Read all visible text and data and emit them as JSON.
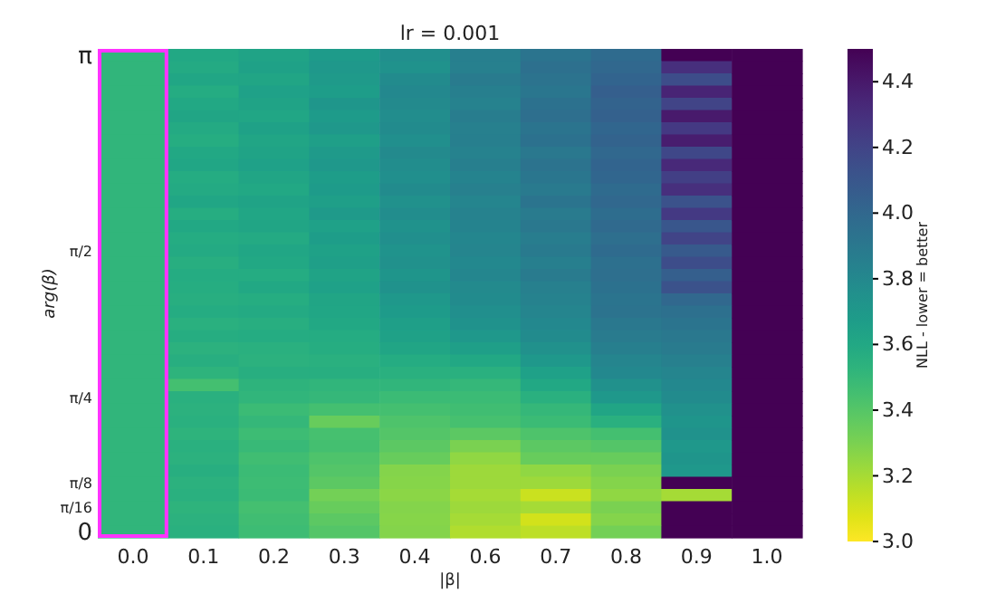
{
  "chart_data": {
    "type": "heatmap",
    "title": "lr = 0.001",
    "xlabel": "|β|",
    "ylabel": "arg(β)",
    "clabel": "NLL - lower = better",
    "categories": [
      "0.0",
      "0.1",
      "0.2",
      "0.3",
      "0.4",
      "0.6",
      "0.7",
      "0.8",
      "0.9",
      "1.0"
    ],
    "y_categories": [
      "π",
      null,
      null,
      null,
      null,
      null,
      null,
      null,
      null,
      null,
      null,
      null,
      null,
      null,
      null,
      null,
      "π/2",
      null,
      null,
      null,
      null,
      null,
      null,
      null,
      null,
      null,
      null,
      null,
      "π/4",
      null,
      null,
      null,
      null,
      null,
      null,
      "π/8",
      null,
      "π/16",
      null,
      "0"
    ],
    "clim": [
      3.0,
      4.5
    ],
    "cticks": [
      {
        "value": 3.0,
        "label": "3.0"
      },
      {
        "value": 3.2,
        "label": "3.2"
      },
      {
        "value": 3.4,
        "label": "3.4"
      },
      {
        "value": 3.6,
        "label": "3.6"
      },
      {
        "value": 3.8,
        "label": "3.8"
      },
      {
        "value": 4.0,
        "label": "4.0"
      },
      {
        "value": 4.2,
        "label": "4.2"
      },
      {
        "value": 4.4,
        "label": "4.4"
      }
    ],
    "cells": [
      [
        3.52,
        3.6,
        3.63,
        3.68,
        3.76,
        3.86,
        3.92,
        3.98,
        4.5,
        4.5
      ],
      [
        3.52,
        3.59,
        3.64,
        3.7,
        3.74,
        3.85,
        3.95,
        4.0,
        4.3,
        4.5
      ],
      [
        3.52,
        3.61,
        3.62,
        3.69,
        3.78,
        3.88,
        3.93,
        4.02,
        4.15,
        4.5
      ],
      [
        3.52,
        3.58,
        3.65,
        3.67,
        3.8,
        3.86,
        3.91,
        4.05,
        4.35,
        4.5
      ],
      [
        3.52,
        3.6,
        3.63,
        3.71,
        3.79,
        3.84,
        3.94,
        4.03,
        4.2,
        4.5
      ],
      [
        3.52,
        3.62,
        3.61,
        3.68,
        3.77,
        3.87,
        3.96,
        4.04,
        4.4,
        4.5
      ],
      [
        3.52,
        3.59,
        3.64,
        3.7,
        3.78,
        3.85,
        3.92,
        4.01,
        4.25,
        4.5
      ],
      [
        3.52,
        3.57,
        3.62,
        3.66,
        3.76,
        3.86,
        3.94,
        4.03,
        4.38,
        4.5
      ],
      [
        3.52,
        3.6,
        3.63,
        3.69,
        3.79,
        3.84,
        3.9,
        4.0,
        4.18,
        4.5
      ],
      [
        3.52,
        3.61,
        3.65,
        3.7,
        3.77,
        3.86,
        3.93,
        4.02,
        4.33,
        4.5
      ],
      [
        3.52,
        3.58,
        3.62,
        3.67,
        3.76,
        3.83,
        3.91,
        4.01,
        4.22,
        4.5
      ],
      [
        3.52,
        3.59,
        3.6,
        3.68,
        3.78,
        3.85,
        3.89,
        3.98,
        4.3,
        4.5
      ],
      [
        3.52,
        3.61,
        3.63,
        3.66,
        3.75,
        3.82,
        3.92,
        4.0,
        4.12,
        4.5
      ],
      [
        3.52,
        3.57,
        3.61,
        3.69,
        3.77,
        3.84,
        3.88,
        3.97,
        4.25,
        4.5
      ],
      [
        3.52,
        3.6,
        3.62,
        3.65,
        3.74,
        3.83,
        3.9,
        3.99,
        4.1,
        4.5
      ],
      [
        3.52,
        3.58,
        3.59,
        3.67,
        3.76,
        3.81,
        3.87,
        3.96,
        4.2,
        4.5
      ],
      [
        3.52,
        3.59,
        3.61,
        3.64,
        3.73,
        3.82,
        3.89,
        3.98,
        4.08,
        4.5
      ],
      [
        3.52,
        3.56,
        3.6,
        3.66,
        3.75,
        3.8,
        3.86,
        3.95,
        4.15,
        4.5
      ],
      [
        3.52,
        3.58,
        3.58,
        3.63,
        3.72,
        3.81,
        3.88,
        3.96,
        4.05,
        4.5
      ],
      [
        3.52,
        3.57,
        3.6,
        3.65,
        3.74,
        3.79,
        3.85,
        3.94,
        4.12,
        4.5
      ],
      [
        3.52,
        3.56,
        3.57,
        3.62,
        3.7,
        3.78,
        3.84,
        3.92,
        4.0,
        4.5
      ],
      [
        3.52,
        3.58,
        3.59,
        3.61,
        3.68,
        3.76,
        3.82,
        3.93,
        3.95,
        4.5
      ],
      [
        3.52,
        3.55,
        3.56,
        3.6,
        3.66,
        3.74,
        3.8,
        3.9,
        3.92,
        4.5
      ],
      [
        3.52,
        3.57,
        3.58,
        3.58,
        3.64,
        3.7,
        3.78,
        3.88,
        3.9,
        4.5
      ],
      [
        3.52,
        3.54,
        3.55,
        3.57,
        3.62,
        3.66,
        3.75,
        3.86,
        3.88,
        4.5
      ],
      [
        3.52,
        3.56,
        3.54,
        3.55,
        3.58,
        3.6,
        3.7,
        3.82,
        3.85,
        4.5
      ],
      [
        3.52,
        3.53,
        3.56,
        3.56,
        3.55,
        3.55,
        3.65,
        3.8,
        3.82,
        4.5
      ],
      [
        3.52,
        3.45,
        3.53,
        3.52,
        3.52,
        3.5,
        3.6,
        3.75,
        3.8,
        4.5
      ],
      [
        3.52,
        3.55,
        3.52,
        3.5,
        3.48,
        3.48,
        3.55,
        3.7,
        3.78,
        4.5
      ],
      [
        3.52,
        3.54,
        3.48,
        3.45,
        3.45,
        3.46,
        3.5,
        3.62,
        3.75,
        4.5
      ],
      [
        3.52,
        3.55,
        3.5,
        3.35,
        3.42,
        3.44,
        3.48,
        3.55,
        3.72,
        4.5
      ],
      [
        3.52,
        3.53,
        3.47,
        3.44,
        3.4,
        3.38,
        3.42,
        3.45,
        3.74,
        4.5
      ],
      [
        3.52,
        3.55,
        3.49,
        3.45,
        3.38,
        3.3,
        3.38,
        3.4,
        3.7,
        4.5
      ],
      [
        3.52,
        3.54,
        3.46,
        3.42,
        3.35,
        3.25,
        3.35,
        3.35,
        3.72,
        4.5
      ],
      [
        3.52,
        3.56,
        3.48,
        3.4,
        3.28,
        3.22,
        3.25,
        3.3,
        3.7,
        4.5
      ],
      [
        3.52,
        3.54,
        3.47,
        3.38,
        3.27,
        3.22,
        3.22,
        3.28,
        4.5,
        4.5
      ],
      [
        3.52,
        3.55,
        3.48,
        3.32,
        3.26,
        3.2,
        3.12,
        3.25,
        3.2,
        4.5
      ],
      [
        3.52,
        3.53,
        3.45,
        3.35,
        3.28,
        3.22,
        3.2,
        3.3,
        4.5,
        4.5
      ],
      [
        3.52,
        3.54,
        3.46,
        3.38,
        3.27,
        3.2,
        3.1,
        3.28,
        4.5,
        4.5
      ],
      [
        3.52,
        3.55,
        3.47,
        3.4,
        3.28,
        3.18,
        3.15,
        3.32,
        4.5,
        4.5
      ]
    ]
  }
}
